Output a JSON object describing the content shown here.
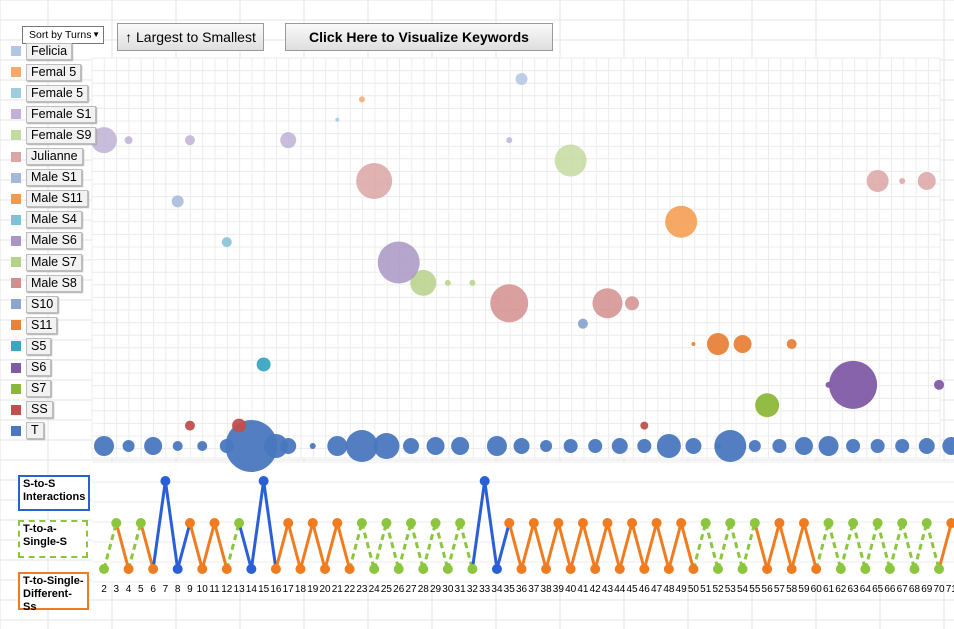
{
  "toolbar": {
    "sort_dropdown_value": "Sort by Turns",
    "sort_button_label": "↑ Largest to Smallest",
    "visualize_button_label": "Click Here to Visualize Keywords"
  },
  "legend": [
    {
      "label": "Felicia",
      "color": "#b3c6e3"
    },
    {
      "label": "Femal 5",
      "color": "#f7a86b"
    },
    {
      "label": "Female 5",
      "color": "#9ecde0"
    },
    {
      "label": "Female S1",
      "color": "#c0b2d6"
    },
    {
      "label": "Female S9",
      "color": "#c4dba0"
    },
    {
      "label": "Julianne",
      "color": "#dba5a5"
    },
    {
      "label": "Male S1",
      "color": "#a3b8dc"
    },
    {
      "label": "Male S11",
      "color": "#f59a4a"
    },
    {
      "label": "Male S4",
      "color": "#7fc1d6"
    },
    {
      "label": "Male S6",
      "color": "#a996c4"
    },
    {
      "label": "Male S7",
      "color": "#b6d188"
    },
    {
      "label": "Male S8",
      "color": "#d38f8f"
    },
    {
      "label": "S10",
      "color": "#8da6cf"
    },
    {
      "label": "S11",
      "color": "#e8823a"
    },
    {
      "label": "S5",
      "color": "#3ba6c2"
    },
    {
      "label": "S6",
      "color": "#7f5ba6"
    },
    {
      "label": "S7",
      "color": "#8cb83a"
    },
    {
      "label": "SS",
      "color": "#c0504d"
    },
    {
      "label": "T",
      "color": "#4a78bf"
    }
  ],
  "row_labels": {
    "sts": "S-to-S Interactions",
    "t_single": "T-to-a-Single-S",
    "t_diff": "T-to-Single-Different-Ss"
  },
  "colors": {
    "sts_line": "#2a5fd6",
    "t_single_line": "#8cc63f",
    "t_diff_line": "#f07c1f"
  },
  "chart_data": {
    "type": "scatter",
    "x_ticks": [
      "2",
      "3",
      "4",
      "5",
      "6",
      "7",
      "8",
      "9",
      "10",
      "11",
      "12",
      "13",
      "14",
      "15",
      "16",
      "17",
      "18",
      "19",
      "20",
      "21",
      "22",
      "23",
      "24",
      "25",
      "26",
      "27",
      "28",
      "29",
      "30",
      "31",
      "32",
      "33",
      "34",
      "35",
      "36",
      "37",
      "38",
      "39",
      "40",
      "41",
      "42",
      "43",
      "44",
      "45",
      "46",
      "47",
      "48",
      "49",
      "50",
      "51",
      "52",
      "53",
      "54",
      "55",
      "56",
      "57",
      "58",
      "59",
      "60",
      "61",
      "62",
      "63",
      "64",
      "65",
      "66",
      "67",
      "68",
      "69",
      "70",
      "71"
    ],
    "bubble_series": [
      {
        "name": "T",
        "color": "#4a78bf",
        "points": [
          [
            2,
            10
          ],
          [
            4,
            6
          ],
          [
            6,
            9
          ],
          [
            8,
            5
          ],
          [
            10,
            5
          ],
          [
            12,
            7
          ],
          [
            14,
            26
          ],
          [
            16,
            12
          ],
          [
            17,
            8
          ],
          [
            19,
            3
          ],
          [
            21,
            10
          ],
          [
            23,
            16
          ],
          [
            25,
            13
          ],
          [
            27,
            8
          ],
          [
            29,
            9
          ],
          [
            31,
            9
          ],
          [
            34,
            10
          ],
          [
            36,
            8
          ],
          [
            38,
            6
          ],
          [
            40,
            7
          ],
          [
            42,
            7
          ],
          [
            44,
            8
          ],
          [
            46,
            7
          ],
          [
            48,
            12
          ],
          [
            50,
            8
          ],
          [
            52,
            3
          ],
          [
            53,
            16
          ],
          [
            55,
            6
          ],
          [
            57,
            7
          ],
          [
            59,
            9
          ],
          [
            61,
            10
          ],
          [
            63,
            7
          ],
          [
            65,
            7
          ],
          [
            67,
            7
          ],
          [
            69,
            8
          ],
          [
            71,
            9
          ]
        ]
      },
      {
        "name": "SS",
        "color": "#c0504d",
        "points": [
          [
            9,
            5
          ],
          [
            13,
            7
          ],
          [
            46,
            4
          ]
        ]
      },
      {
        "name": "S7",
        "color": "#8cb83a",
        "points": [
          [
            56,
            12
          ]
        ]
      },
      {
        "name": "S6",
        "color": "#7f5ba6",
        "points": [
          [
            61,
            3
          ],
          [
            63,
            24
          ],
          [
            70,
            5
          ]
        ]
      },
      {
        "name": "S5",
        "color": "#3ba6c2",
        "points": [
          [
            15,
            7
          ]
        ]
      },
      {
        "name": "S11",
        "color": "#e8823a",
        "points": [
          [
            50,
            2
          ],
          [
            52,
            11
          ],
          [
            54,
            9
          ],
          [
            58,
            5
          ]
        ]
      },
      {
        "name": "S10",
        "color": "#8da6cf",
        "points": [
          [
            41,
            5
          ]
        ]
      },
      {
        "name": "Male S8",
        "color": "#d38f8f",
        "points": [
          [
            35,
            19
          ],
          [
            43,
            15
          ],
          [
            45,
            7
          ]
        ]
      },
      {
        "name": "Male S7",
        "color": "#b6d188",
        "points": [
          [
            28,
            13
          ],
          [
            30,
            3
          ],
          [
            32,
            3
          ]
        ]
      },
      {
        "name": "Male S6",
        "color": "#a996c4",
        "points": [
          [
            26,
            21
          ]
        ]
      },
      {
        "name": "Male S4",
        "color": "#7fc1d6",
        "points": [
          [
            12,
            5
          ]
        ]
      },
      {
        "name": "Male S11",
        "color": "#f59a4a",
        "points": [
          [
            49,
            16
          ]
        ]
      },
      {
        "name": "Male S1",
        "color": "#a3b8dc",
        "points": [
          [
            8,
            6
          ]
        ]
      },
      {
        "name": "Julianne",
        "color": "#dba5a5",
        "points": [
          [
            24,
            18
          ],
          [
            65,
            11
          ],
          [
            67,
            3
          ],
          [
            69,
            9
          ]
        ]
      },
      {
        "name": "Female S9",
        "color": "#c4dba0",
        "points": [
          [
            40,
            16
          ]
        ]
      },
      {
        "name": "Female S1",
        "color": "#c0b2d6",
        "points": [
          [
            2,
            13
          ],
          [
            4,
            4
          ],
          [
            9,
            5
          ],
          [
            17,
            8
          ],
          [
            35,
            3
          ]
        ]
      },
      {
        "name": "Female 5",
        "color": "#9ecde0",
        "points": [
          [
            21,
            2
          ]
        ]
      },
      {
        "name": "Femal 5",
        "color": "#f7a86b",
        "points": [
          [
            23,
            3
          ]
        ]
      },
      {
        "name": "Felicia",
        "color": "#b3c6e3",
        "points": [
          [
            36,
            6
          ]
        ]
      }
    ],
    "interaction_sequence": [
      "single",
      "single",
      "diff",
      "single",
      "diff",
      "sts",
      "sts",
      "diff",
      "diff",
      "diff",
      "diff",
      "single",
      "sts",
      "sts",
      "diff",
      "diff",
      "diff",
      "diff",
      "diff",
      "diff",
      "diff",
      "single",
      "single",
      "single",
      "single",
      "single",
      "single",
      "single",
      "single",
      "single",
      "single",
      "sts",
      "sts",
      "diff",
      "diff",
      "diff",
      "diff",
      "diff",
      "diff",
      "diff",
      "diff",
      "diff",
      "diff",
      "diff",
      "diff",
      "diff",
      "diff",
      "diff",
      "diff",
      "single",
      "single",
      "single",
      "single",
      "single",
      "diff",
      "diff",
      "diff",
      "diff",
      "diff",
      "single",
      "single",
      "single",
      "single",
      "single",
      "single",
      "single",
      "single",
      "single",
      "single",
      "diff"
    ]
  }
}
